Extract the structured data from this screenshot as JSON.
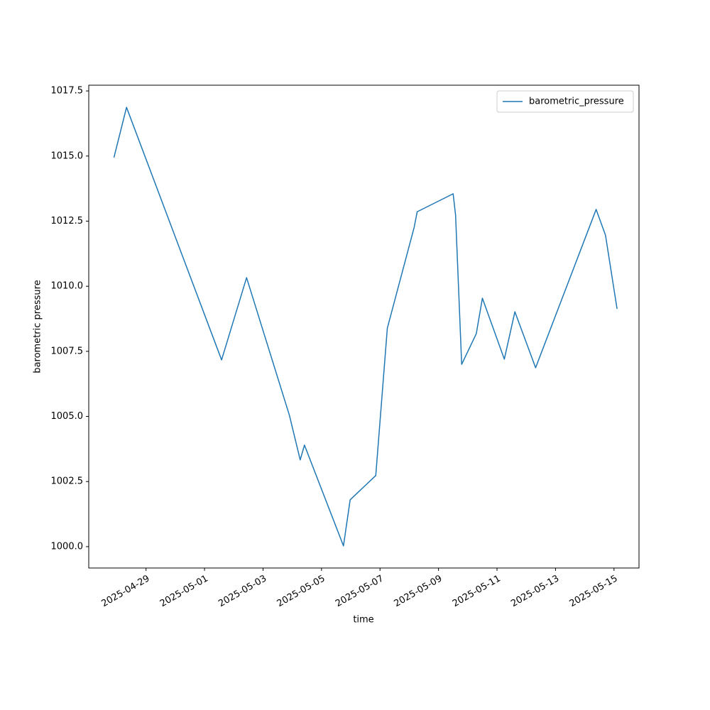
{
  "chart_data": {
    "type": "line",
    "x_label": "time",
    "y_label": "barometric pressure",
    "x": [
      "2025-04-27T21:40",
      "2025-04-28T08:00",
      "2025-05-01T14:00",
      "2025-05-02T10:30",
      "2025-05-03T21:40",
      "2025-05-04T06:30",
      "2025-05-04T10:00",
      "2025-05-05T18:00",
      "2025-05-05T23:30",
      "2025-05-06T20:30",
      "2025-05-07T06:00",
      "2025-05-08T04:00",
      "2025-05-08T06:30",
      "2025-05-09T12:00",
      "2025-05-09T14:00",
      "2025-05-09T19:00",
      "2025-05-10T07:00",
      "2025-05-10T12:00",
      "2025-05-11T06:00",
      "2025-05-11T14:40",
      "2025-05-12T07:40",
      "2025-05-14T09:20",
      "2025-05-14T17:00",
      "2025-05-15T02:30"
    ],
    "series": [
      {
        "name": "barometric_pressure",
        "color": "#1f77b4",
        "values": [
          1014.94,
          1016.87,
          1007.17,
          1010.33,
          1005.04,
          1003.33,
          1003.9,
          1000.03,
          1001.8,
          1002.73,
          1008.39,
          1012.26,
          1012.86,
          1013.55,
          1012.73,
          1007.0,
          1008.18,
          1009.54,
          1007.2,
          1009.02,
          1006.87,
          1012.95,
          1011.96,
          1009.13
        ]
      }
    ],
    "xlim": [
      "2025-04-27T01:00",
      "2025-05-15T20:30"
    ],
    "xticks": [
      "2025-04-29",
      "2025-05-01",
      "2025-05-03",
      "2025-05-05",
      "2025-05-07",
      "2025-05-09",
      "2025-05-11",
      "2025-05-13",
      "2025-05-15"
    ],
    "ylim": [
      999.18,
      1017.72
    ],
    "yticks": [
      {
        "value": 1000,
        "label": "1000.0"
      },
      {
        "value": 1002.5,
        "label": "1002.5"
      },
      {
        "value": 1005,
        "label": "1005.0"
      },
      {
        "value": 1007.5,
        "label": "1007.5"
      },
      {
        "value": 1010,
        "label": "1010.0"
      },
      {
        "value": 1012.5,
        "label": "1012.5"
      },
      {
        "value": 1015,
        "label": "1015.0"
      },
      {
        "value": 1017.5,
        "label": "1017.5"
      }
    ],
    "grid": false,
    "legend": "upper right"
  }
}
